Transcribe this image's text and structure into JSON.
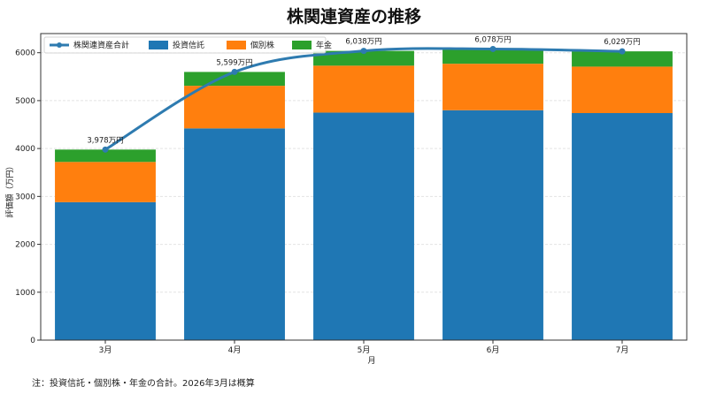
{
  "chart_data": {
    "type": "bar",
    "stacked": true,
    "title": "株関連資産の推移",
    "xlabel": "月",
    "ylabel": "評価額（万円）",
    "categories": [
      "3月",
      "4月",
      "5月",
      "6月",
      "7月"
    ],
    "ylim": [
      0,
      6400
    ],
    "yticks": [
      0,
      1000,
      2000,
      3000,
      4000,
      5000,
      6000
    ],
    "grid": true,
    "legend_position": "top-left",
    "series": [
      {
        "name": "投資信託",
        "type": "bar",
        "color": "#1f77b4",
        "values": [
          2880,
          4420,
          4750,
          4800,
          4740
        ]
      },
      {
        "name": "個別株",
        "type": "bar",
        "color": "#ff7f0e",
        "values": [
          840,
          890,
          980,
          970,
          970
        ]
      },
      {
        "name": "年金",
        "type": "bar",
        "color": "#2ca02c",
        "values": [
          258,
          289,
          308,
          308,
          319
        ]
      },
      {
        "name": "株関連資産合計",
        "type": "line",
        "color": "#2e7bb0",
        "values": [
          3978,
          5599,
          6038,
          6078,
          6029
        ]
      }
    ],
    "data_labels": [
      "3,978万円",
      "5,599万円",
      "6,038万円",
      "6,078万円",
      "6,029万円"
    ],
    "note": "注：投資信託・個別株・年金の合計。2026年3月は概算"
  }
}
